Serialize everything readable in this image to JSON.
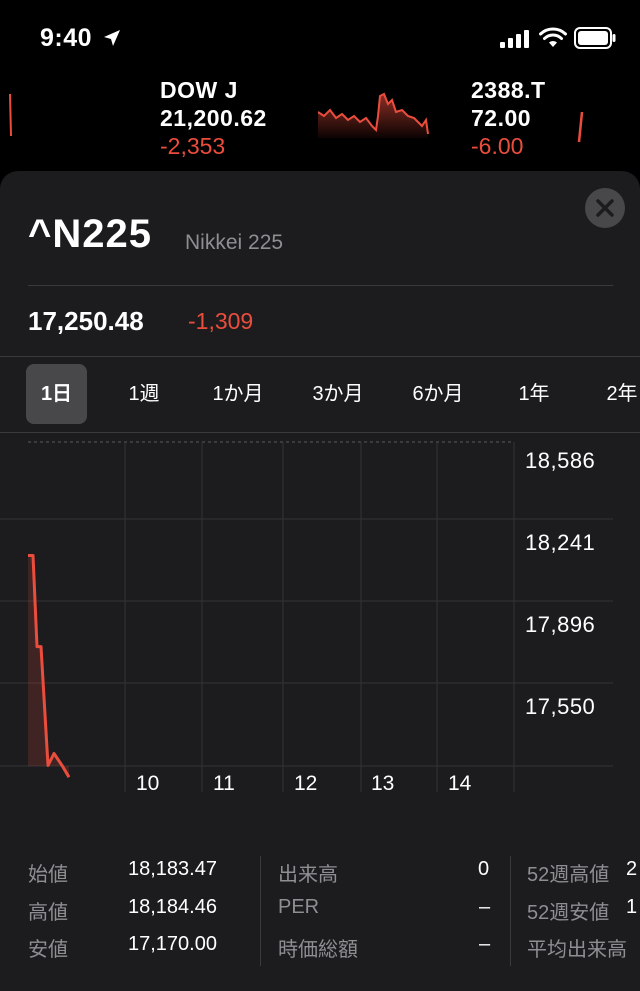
{
  "status_bar": {
    "time": "9:40"
  },
  "ticker": [
    {
      "symbol": "DOW J",
      "price": "21,200.62",
      "change": "-2,353"
    },
    {
      "symbol": "2388.T",
      "price": "72.00",
      "change": "-6.00"
    }
  ],
  "quote": {
    "symbol": "^N225",
    "name": "Nikkei 225",
    "price": "17,250.48",
    "change": "-1,309"
  },
  "ranges": [
    {
      "label": "1日",
      "selected": true
    },
    {
      "label": "1週",
      "selected": false
    },
    {
      "label": "1か月",
      "selected": false
    },
    {
      "label": "3か月",
      "selected": false
    },
    {
      "label": "6か月",
      "selected": false
    },
    {
      "label": "1年",
      "selected": false
    },
    {
      "label": "2年",
      "selected": false
    }
  ],
  "chart_data": {
    "type": "line",
    "y_tick_labels": [
      "18,586",
      "18,241",
      "17,896",
      "17,550"
    ],
    "x_tick_labels": [
      "10",
      "11",
      "12",
      "13",
      "14"
    ],
    "ylim": [
      17,
      300,
      18,
      586
    ],
    "series": [
      {
        "values": [
          18184,
          18184,
          17800,
          17800,
          17300,
          17350,
          17300,
          17250
        ]
      }
    ],
    "color": "#eb4d3d",
    "grid": true
  },
  "stats": {
    "col1": [
      {
        "label": "始値",
        "value": "18,183.47"
      },
      {
        "label": "高値",
        "value": "18,184.46"
      },
      {
        "label": "安値",
        "value": "17,170.00"
      }
    ],
    "col2": [
      {
        "label": "出来高",
        "value": "0"
      },
      {
        "label": "PER",
        "value": "–"
      },
      {
        "label": "時価総額",
        "value": "–"
      }
    ],
    "col3": [
      {
        "label": "52週高値",
        "value": "2"
      },
      {
        "label": "52週安値",
        "value": "1"
      },
      {
        "label": "平均出来高",
        "value": ""
      }
    ]
  },
  "colors": {
    "negative": "#eb4d3d",
    "sheet_bg": "#1c1c1e",
    "secondary_text": "#8e8e93"
  },
  "icons": [
    "location-arrow-icon",
    "signal-icon",
    "wifi-icon",
    "battery-icon",
    "close-icon"
  ]
}
